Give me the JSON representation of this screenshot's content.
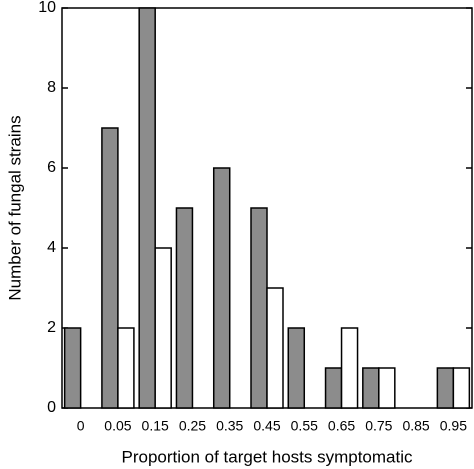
{
  "chart_data": {
    "type": "bar",
    "x_label": "Proportion of target hosts symptomatic",
    "y_label": "Number of fungal strains",
    "categories": [
      "0",
      "0.05",
      "0.15",
      "0.25",
      "0.35",
      "0.45",
      "0.55",
      "0.65",
      "0.75",
      "0.85",
      "0.95"
    ],
    "series": [
      {
        "color": "#8c8c8c",
        "values": [
          2,
          7,
          10,
          5,
          6,
          5,
          2,
          1,
          1,
          0,
          1
        ]
      },
      {
        "color": "#ffffff",
        "values": [
          0,
          2,
          4,
          0,
          0,
          3,
          0,
          2,
          1,
          0,
          1
        ]
      }
    ],
    "ylim": [
      0,
      10
    ],
    "yticks": [
      0,
      2,
      4,
      6,
      8,
      10
    ]
  }
}
